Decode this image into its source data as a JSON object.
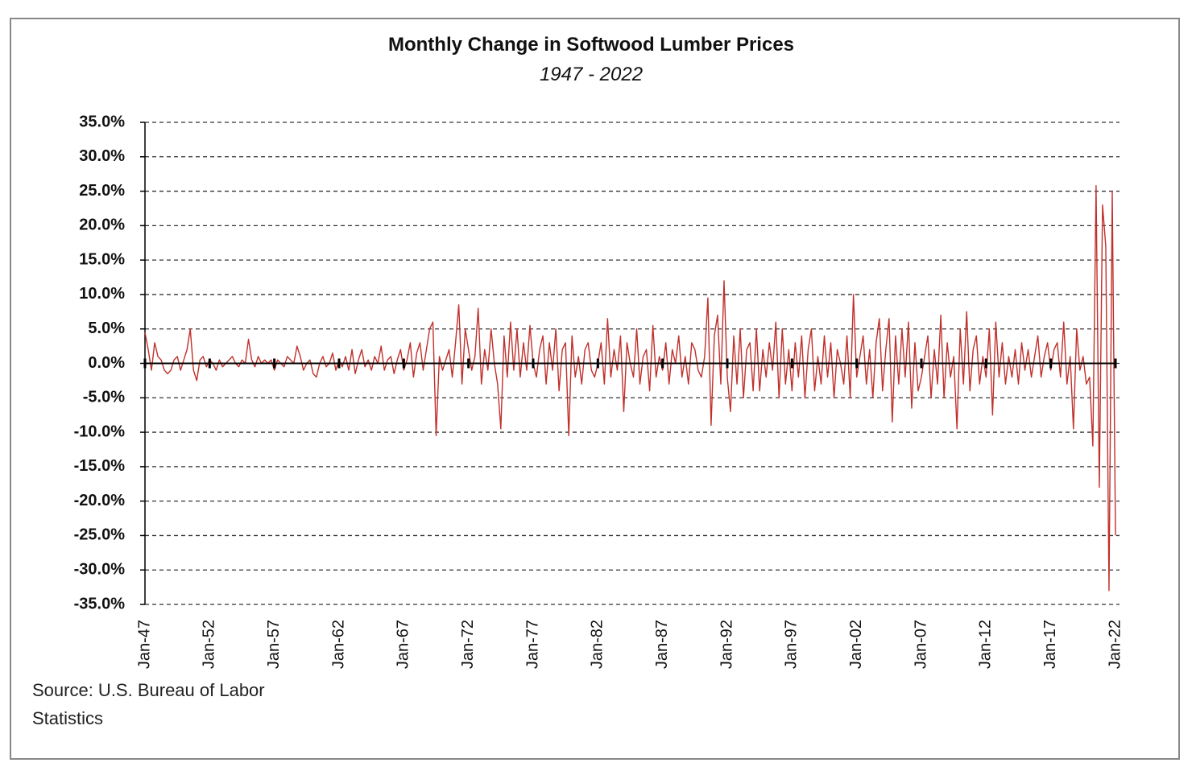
{
  "chart_data": {
    "type": "line",
    "title": "Monthly Change in Softwood Lumber Prices",
    "subtitle": "1947 - 2022",
    "source": "Source: U.S. Bureau of Labor Statistics",
    "categories": [
      "Jan-47",
      null,
      null,
      null,
      null,
      null,
      null,
      null,
      null,
      null,
      null,
      null,
      null,
      null,
      null,
      null,
      null,
      null,
      null,
      null,
      "Jan-52",
      null,
      null,
      null,
      null,
      null,
      null,
      null,
      null,
      null,
      null,
      null,
      null,
      null,
      null,
      null,
      null,
      null,
      null,
      null,
      "Jan-57",
      null,
      null,
      null,
      null,
      null,
      null,
      null,
      null,
      null,
      null,
      null,
      null,
      null,
      null,
      null,
      null,
      null,
      null,
      null,
      "Jan-62",
      null,
      null,
      null,
      null,
      null,
      null,
      null,
      null,
      null,
      null,
      null,
      null,
      null,
      null,
      null,
      null,
      null,
      null,
      null,
      "Jan-67",
      null,
      null,
      null,
      null,
      null,
      null,
      null,
      null,
      null,
      null,
      null,
      null,
      null,
      null,
      null,
      null,
      null,
      null,
      null,
      "Jan-72",
      null,
      null,
      null,
      null,
      null,
      null,
      null,
      null,
      null,
      null,
      null,
      null,
      null,
      null,
      null,
      null,
      null,
      null,
      null,
      "Jan-77",
      null,
      null,
      null,
      null,
      null,
      null,
      null,
      null,
      null,
      null,
      null,
      null,
      null,
      null,
      null,
      null,
      null,
      null,
      null,
      "Jan-82",
      null,
      null,
      null,
      null,
      null,
      null,
      null,
      null,
      null,
      null,
      null,
      null,
      null,
      null,
      null,
      null,
      null,
      null,
      null,
      "Jan-87",
      null,
      null,
      null,
      null,
      null,
      null,
      null,
      null,
      null,
      null,
      null,
      null,
      null,
      null,
      null,
      null,
      null,
      null,
      null,
      "Jan-92",
      null,
      null,
      null,
      null,
      null,
      null,
      null,
      null,
      null,
      null,
      null,
      null,
      null,
      null,
      null,
      null,
      null,
      null,
      null,
      "Jan-97",
      null,
      null,
      null,
      null,
      null,
      null,
      null,
      null,
      null,
      null,
      null,
      null,
      null,
      null,
      null,
      null,
      null,
      null,
      null,
      "Jan-02",
      null,
      null,
      null,
      null,
      null,
      null,
      null,
      null,
      null,
      null,
      null,
      null,
      null,
      null,
      null,
      null,
      null,
      null,
      null,
      "Jan-07",
      null,
      null,
      null,
      null,
      null,
      null,
      null,
      null,
      null,
      null,
      null,
      null,
      null,
      null,
      null,
      null,
      null,
      null,
      null,
      "Jan-12",
      null,
      null,
      null,
      null,
      null,
      null,
      null,
      null,
      null,
      null,
      null,
      null,
      null,
      null,
      null,
      null,
      null,
      null,
      null,
      "Jan-17",
      null,
      null,
      null,
      null,
      null,
      null,
      null,
      null,
      null,
      null,
      null,
      null,
      null,
      null,
      null,
      null,
      null,
      null,
      null,
      "Jan-22"
    ],
    "series": [
      {
        "color": "#c0302b",
        "values": [
          4.5,
          2,
          -1,
          3,
          1,
          0.5,
          -1,
          -1.5,
          -1,
          0.5,
          1,
          -1,
          0.5,
          2,
          5,
          -1,
          -2.5,
          0.5,
          1,
          -0.5,
          0.5,
          0,
          -1,
          0.5,
          -0.5,
          0,
          0.5,
          1,
          0,
          -0.5,
          0.5,
          0,
          3.5,
          0.5,
          -0.5,
          1,
          0,
          0.5,
          0,
          0.5,
          -1,
          0.5,
          0,
          -0.5,
          1,
          0.5,
          0,
          2.5,
          1,
          -1,
          0,
          0.5,
          -1.5,
          -2,
          0,
          1,
          -0.5,
          0,
          1.5,
          -1,
          0.5,
          -0.5,
          1,
          -1,
          2,
          -1.5,
          0.5,
          2,
          -0.5,
          0.5,
          -1,
          1,
          0,
          2.5,
          -1,
          0.5,
          1,
          -1.5,
          0.5,
          2,
          -1,
          0.5,
          3,
          -2,
          1.5,
          3,
          -1,
          2,
          5,
          6,
          -10.5,
          1,
          -1,
          0.5,
          2,
          -2,
          3,
          8.5,
          -3,
          5,
          2,
          -1,
          1,
          8,
          -3,
          2,
          -1,
          5,
          0,
          -3,
          -9.5,
          4,
          -2,
          6,
          -1,
          5,
          -2,
          3,
          -1,
          5.5,
          0,
          -2,
          2,
          4,
          -3,
          3,
          -1,
          5,
          -4,
          2,
          3,
          -10.5,
          4,
          -2,
          1,
          -3,
          2,
          3,
          -1,
          -2,
          0,
          3,
          -3,
          6.5,
          -2,
          2,
          -1,
          4,
          -7,
          3,
          0,
          -2,
          5,
          -3,
          1,
          2,
          -4,
          5.5,
          -2,
          1,
          -1,
          3,
          -3,
          2,
          0,
          4,
          -2,
          1,
          -3,
          3,
          2,
          -1,
          -2,
          1,
          9.5,
          -9,
          4,
          7,
          -3,
          12,
          -2,
          -7,
          4,
          -3,
          5,
          -5,
          2,
          3,
          -4,
          5,
          -4,
          2,
          -2,
          3,
          -1,
          6,
          -5,
          5,
          -3,
          2,
          -4,
          3,
          -2,
          4,
          -5,
          2,
          5,
          -4,
          1,
          -3,
          4,
          -2,
          3,
          -5,
          2,
          0,
          -3,
          4,
          -5,
          10,
          -2,
          1,
          4,
          -3,
          2,
          -5,
          3,
          6.5,
          -4,
          2,
          6.5,
          -8.5,
          4,
          -3,
          5,
          -2,
          6,
          -6.5,
          3,
          -4,
          -2,
          1,
          4,
          -5,
          2,
          -3,
          7,
          -5,
          3,
          -2,
          1,
          -9.5,
          5,
          -3,
          7.5,
          -4,
          2,
          4,
          -3,
          1,
          -2,
          5,
          -7.5,
          6,
          -2,
          3,
          -3,
          1,
          -2,
          2,
          -3,
          3,
          -1,
          2,
          -2,
          1,
          4,
          -2,
          1,
          3,
          -1,
          2,
          3,
          -2,
          6,
          -3,
          1,
          -9.5,
          5,
          -1,
          1,
          -3,
          -2,
          -12,
          25.8,
          -18,
          23,
          17,
          -33,
          25,
          -25
        ]
      }
    ],
    "ylim": [
      -35,
      35
    ],
    "yticks": [
      {
        "value": -35,
        "label": "-35.0%"
      },
      {
        "value": -30,
        "label": "-30.0%"
      },
      {
        "value": -25,
        "label": "-25.0%"
      },
      {
        "value": -20,
        "label": "-20.0%"
      },
      {
        "value": -15,
        "label": "-15.0%"
      },
      {
        "value": -10,
        "label": "-10.0%"
      },
      {
        "value": -5,
        "label": "-5.0%"
      },
      {
        "value": 0,
        "label": "0.0%"
      },
      {
        "value": 5,
        "label": "5.0%"
      },
      {
        "value": 10,
        "label": "10.0%"
      },
      {
        "value": 15,
        "label": "15.0%"
      },
      {
        "value": 20,
        "label": "20.0%"
      },
      {
        "value": 25,
        "label": "25.0%"
      },
      {
        "value": 30,
        "label": "30.0%"
      },
      {
        "value": 35,
        "label": "35.0%"
      }
    ],
    "grid": true
  }
}
